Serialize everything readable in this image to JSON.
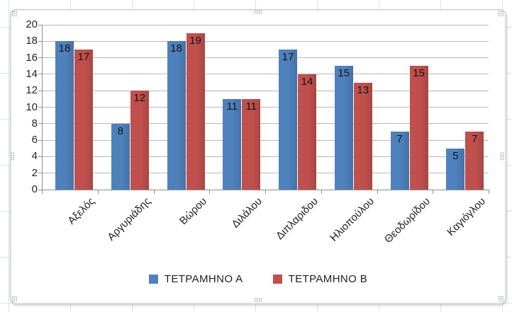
{
  "workbook": {
    "grid_color": "#dde2eb",
    "chart_selected": true
  },
  "chart_style": {
    "background": "#ffffff",
    "border_color": "#c6c6c6",
    "gridline_color": "#b9b9b9",
    "axis_color": "#8e8e8e",
    "text_color": "#262626",
    "data_label_color": "#141414"
  },
  "chart_data": {
    "type": "bar",
    "title": "",
    "categories": [
      "Αξελός",
      "Αργυριάδης",
      "Βώρου",
      "Διλάλου",
      "Διπλαριδου",
      "Ηλιοπούλου",
      "Θεοδωρίδου",
      "Καγιόγλου"
    ],
    "series": [
      {
        "name": "ΤΕΤΡΑΜΗΝΟ Α",
        "color": "#4F81BD",
        "values": [
          18,
          8,
          18,
          11,
          17,
          15,
          7,
          5
        ]
      },
      {
        "name": "ΤΕΤΡΑΜΗΝΟ Β",
        "color": "#C0504D",
        "values": [
          17,
          12,
          19,
          11,
          14,
          13,
          15,
          7
        ]
      }
    ],
    "xlabel": "",
    "ylabel": "",
    "ylim": [
      0,
      20
    ],
    "yticks": [
      0,
      2,
      4,
      6,
      8,
      10,
      12,
      14,
      16,
      18,
      20
    ],
    "grid": true,
    "legend_position": "bottom",
    "data_labels": "inside-end",
    "category_label_rotation_deg": 45
  }
}
